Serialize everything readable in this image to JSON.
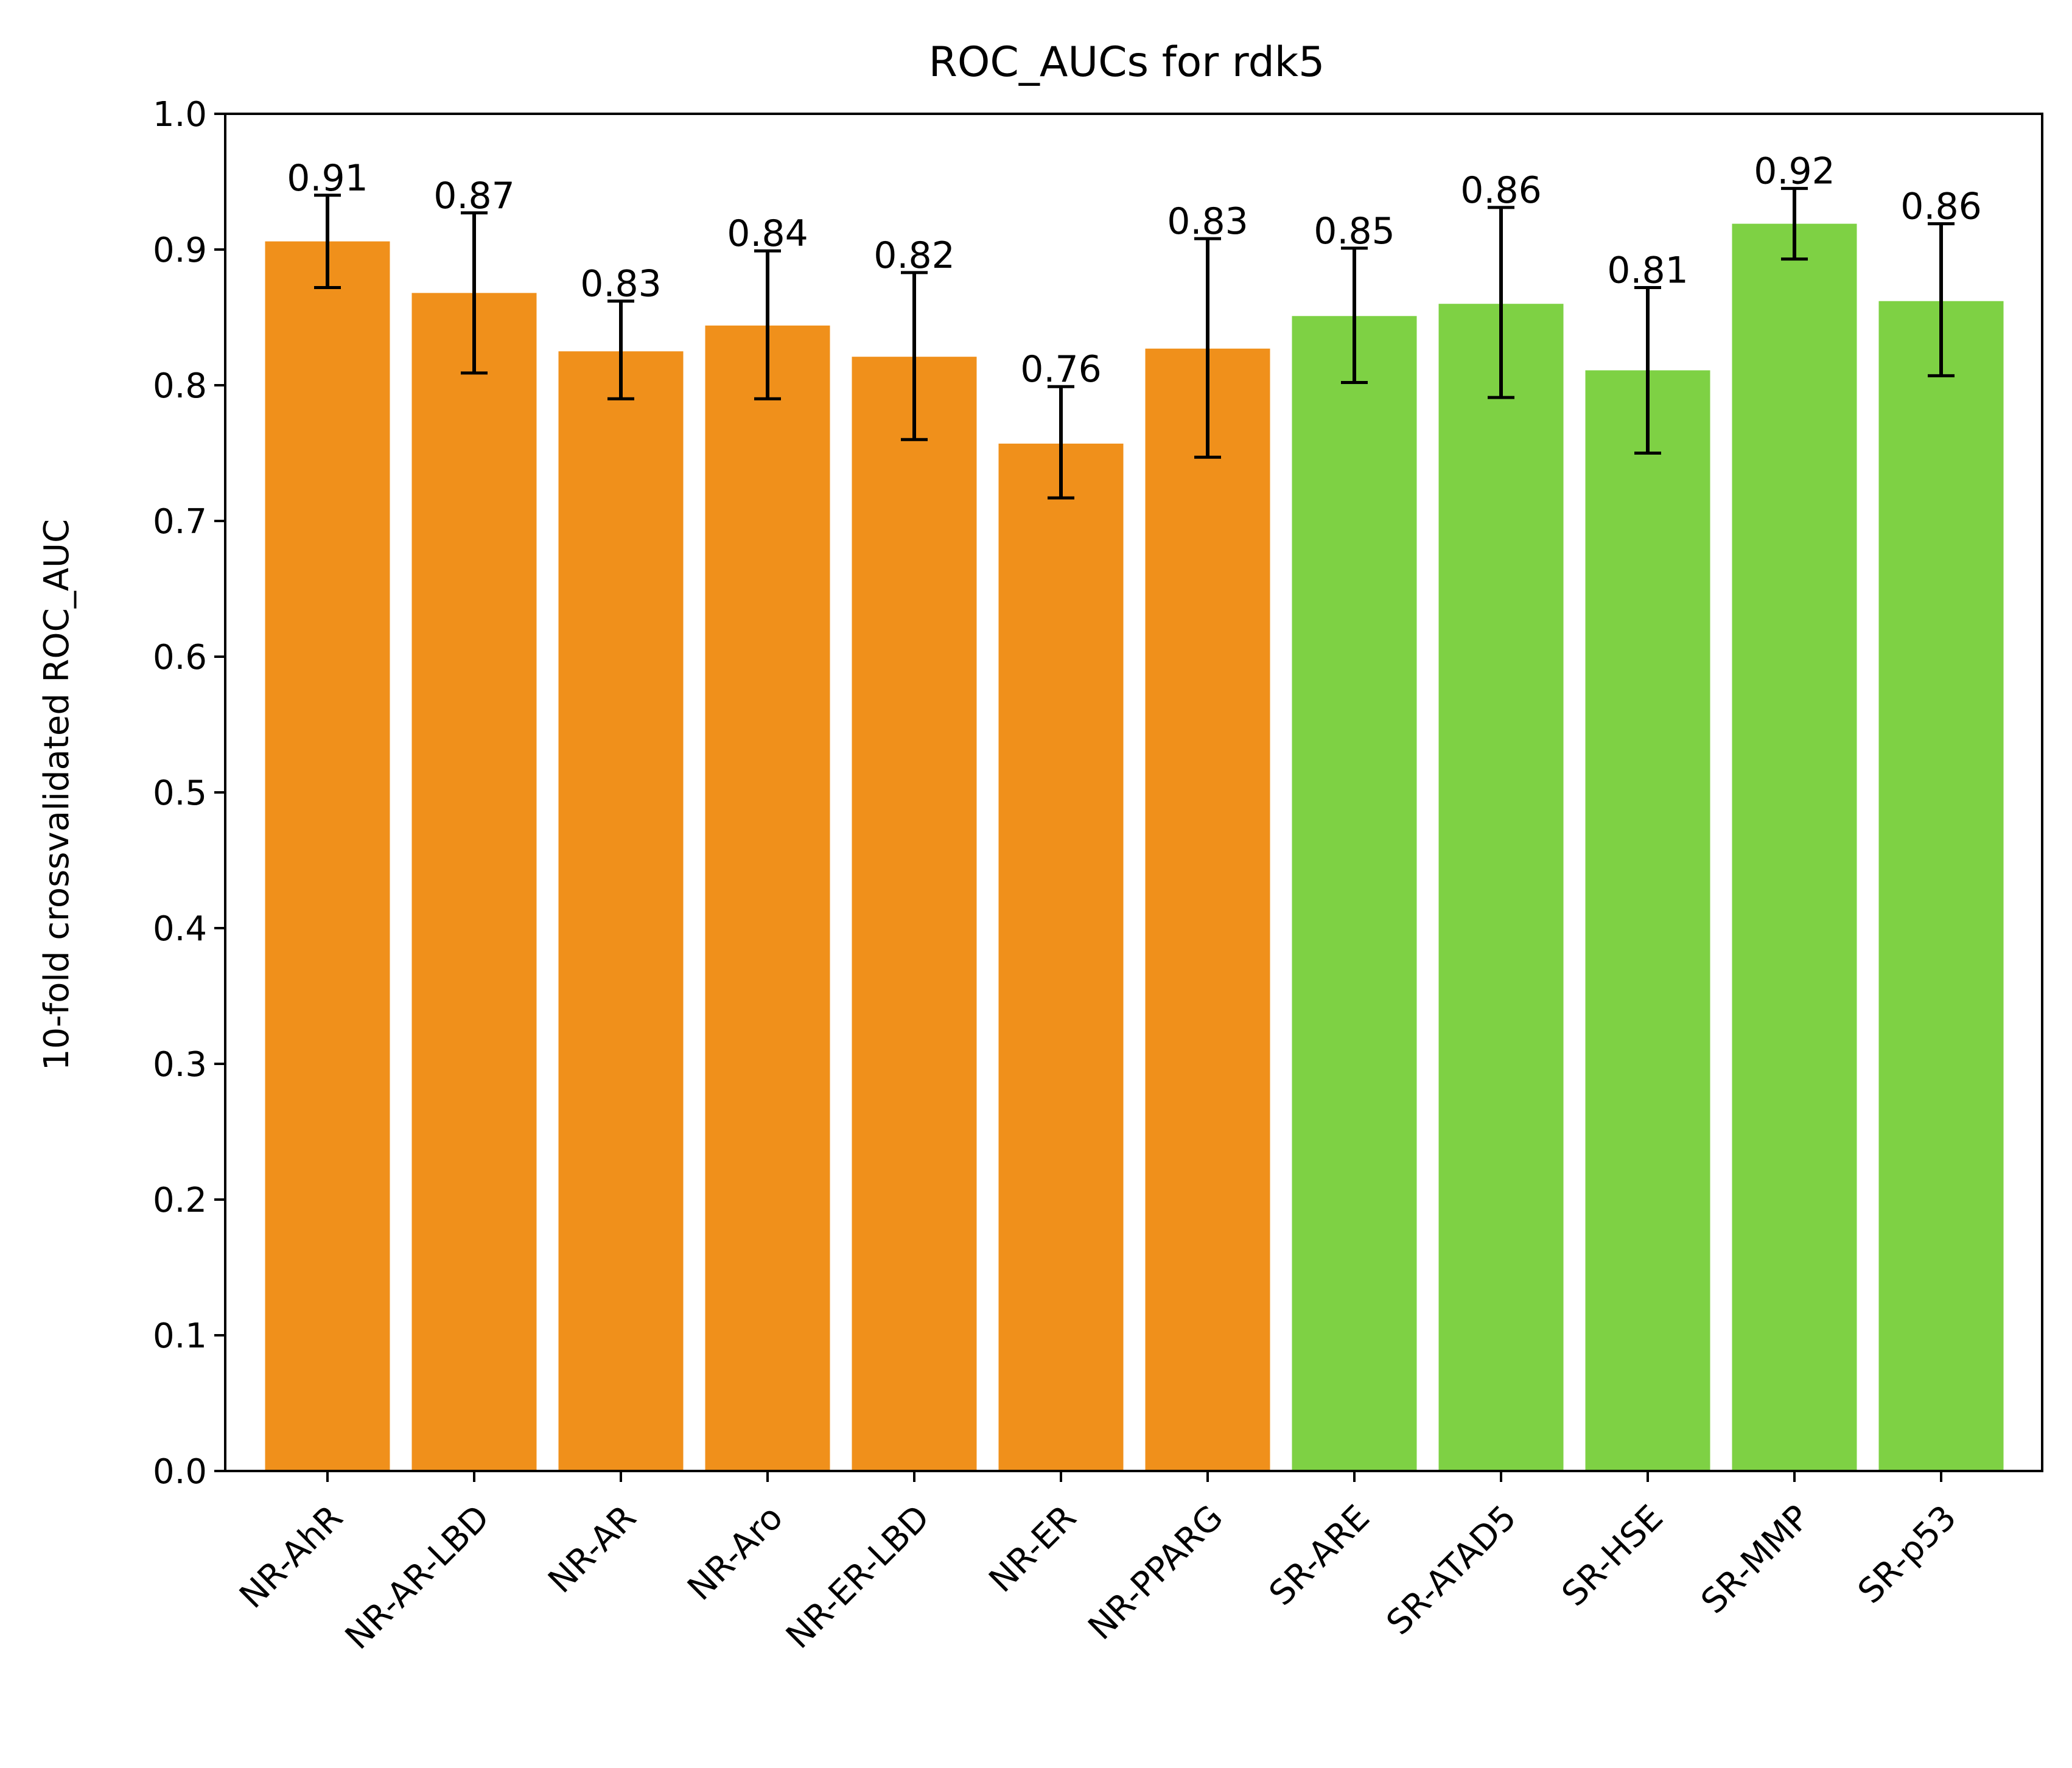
{
  "chart_data": {
    "type": "bar",
    "title": "ROC_AUCs for rdk5",
    "xlabel": "",
    "ylabel": "10-fold crossvalidated ROC_AUC",
    "ylim": [
      0.0,
      1.0
    ],
    "yticks": [
      "0.0",
      "0.1",
      "0.2",
      "0.3",
      "0.4",
      "0.5",
      "0.6",
      "0.7",
      "0.8",
      "0.9",
      "1.0"
    ],
    "grid": false,
    "categories": [
      "NR-AhR",
      "NR-AR-LBD",
      "NR-AR",
      "NR-Aro",
      "NR-ER-LBD",
      "NR-ER",
      "NR-PPARG",
      "SR-ARE",
      "SR-ATAD5",
      "SR-HSE",
      "SR-MMP",
      "SR-p53"
    ],
    "values": [
      0.906,
      0.868,
      0.825,
      0.844,
      0.821,
      0.757,
      0.827,
      0.851,
      0.86,
      0.811,
      0.919,
      0.862
    ],
    "errors_low": [
      0.872,
      0.809,
      0.79,
      0.79,
      0.76,
      0.717,
      0.747,
      0.802,
      0.791,
      0.75,
      0.893,
      0.807
    ],
    "errors_high": [
      0.94,
      0.927,
      0.862,
      0.899,
      0.883,
      0.799,
      0.908,
      0.901,
      0.931,
      0.872,
      0.945,
      0.919
    ],
    "labels": [
      "0.91",
      "0.87",
      "0.83",
      "0.84",
      "0.82",
      "0.76",
      "0.83",
      "0.85",
      "0.86",
      "0.81",
      "0.92",
      "0.86"
    ],
    "colors": [
      "#f0901b",
      "#f0901b",
      "#f0901b",
      "#f0901b",
      "#f0901b",
      "#f0901b",
      "#f0901b",
      "#7ed144",
      "#7ed144",
      "#7ed144",
      "#7ed144",
      "#7ed144"
    ],
    "error_color": "#000000"
  }
}
